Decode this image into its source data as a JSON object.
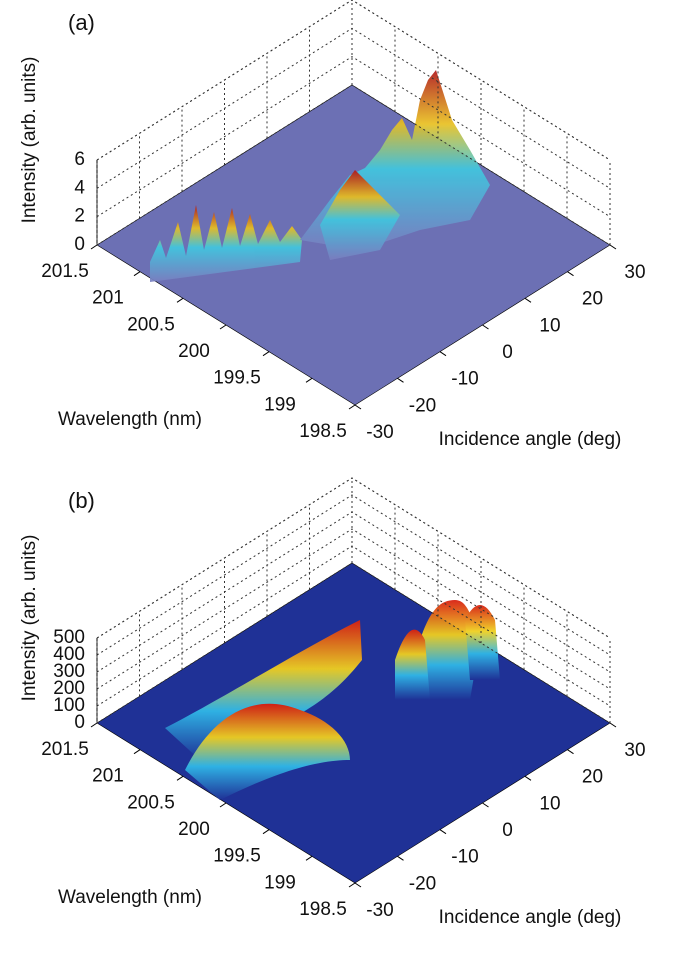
{
  "chart_data": [
    {
      "type": "surface3d",
      "panel": "(a)",
      "xlabel": "Wavelength (nm)",
      "ylabel": "Incidence angle (deg)",
      "zlabel": "Intensity (arb. units)",
      "xlim": [
        201.5,
        198.5
      ],
      "xticks": [
        201.5,
        201,
        200.5,
        200,
        199.5,
        199,
        198.5
      ],
      "ylim": [
        -30,
        30
      ],
      "yticks": [
        -30,
        -20,
        -10,
        0,
        10,
        20,
        30
      ],
      "zlim": [
        0,
        6
      ],
      "zticks": [
        0,
        2,
        4,
        6
      ],
      "floor_color": "#6c70b4"
    },
    {
      "type": "surface3d",
      "panel": "(b)",
      "xlabel": "Wavelength (nm)",
      "ylabel": "Incidence angle (deg)",
      "zlabel": "Intensity (arb. units)",
      "xlim": [
        201.5,
        198.5
      ],
      "xticks": [
        201.5,
        201,
        200.5,
        200,
        199.5,
        199,
        198.5
      ],
      "ylim": [
        -30,
        30
      ],
      "yticks": [
        -30,
        -20,
        -10,
        0,
        10,
        20,
        30
      ],
      "zlim": [
        0,
        500
      ],
      "zticks": [
        0,
        100,
        200,
        300,
        400,
        500
      ],
      "floor_color": "#1f3196"
    }
  ]
}
